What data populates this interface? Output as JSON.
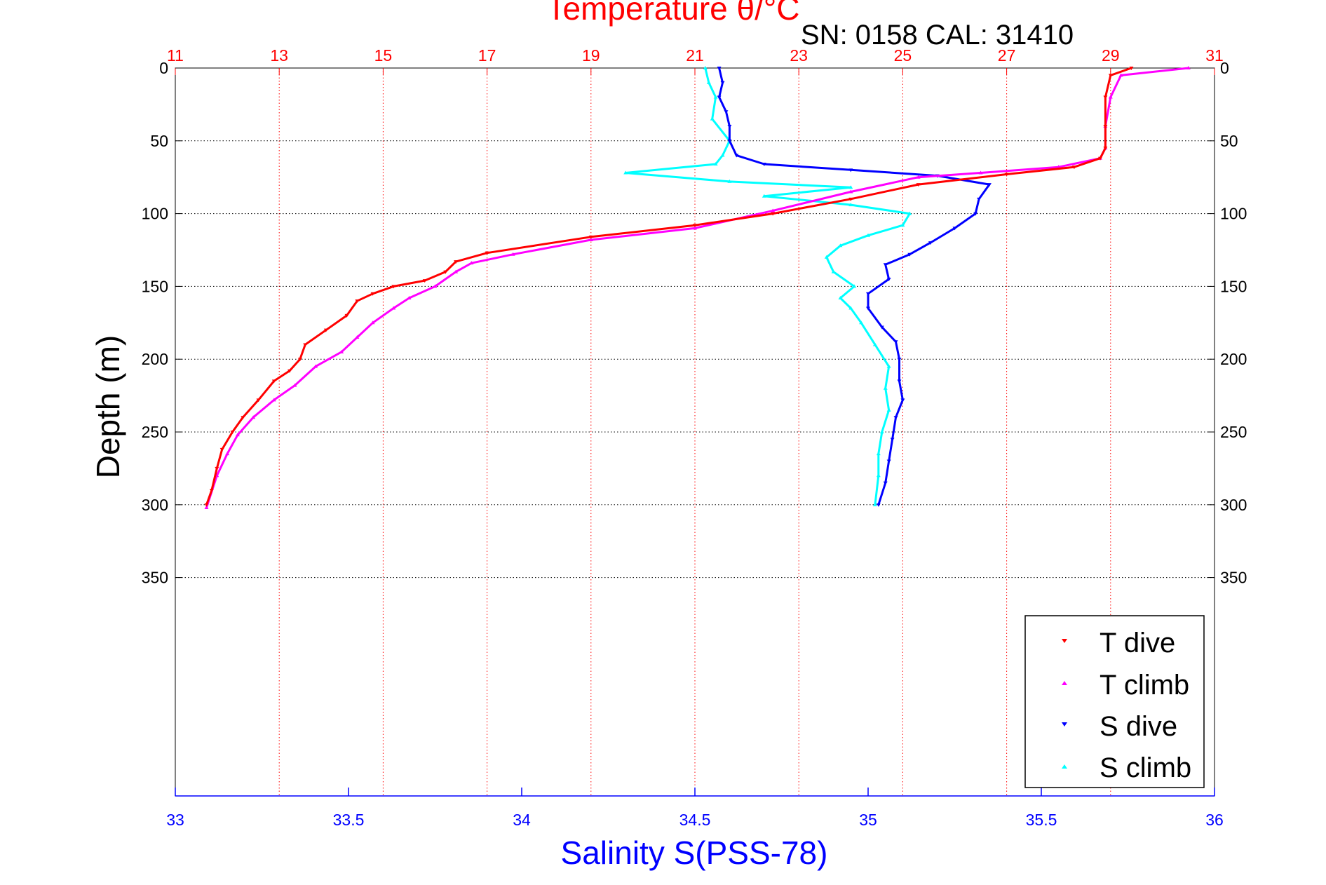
{
  "chart_data": {
    "type": "scatter",
    "title": "Temperature θ/°C",
    "subtitle": "SN: 0158  CAL: 31410",
    "xlabel_top": "Temperature θ/°C",
    "xlabel_bottom": "Salinity S(PSS-78)",
    "ylabel": "Depth (m)",
    "x_top": {
      "lim": [
        11,
        31
      ],
      "ticks": [
        "11",
        "13",
        "15",
        "17",
        "19",
        "21",
        "23",
        "25",
        "27",
        "29",
        "31"
      ],
      "color": "#ff0000"
    },
    "x_bottom": {
      "lim": [
        33,
        36
      ],
      "ticks": [
        "33",
        "33.5",
        "34",
        "34.5",
        "35",
        "35.5",
        "36"
      ],
      "color": "#0000ff"
    },
    "y": {
      "lim": [
        0,
        500
      ],
      "reversed": true,
      "ticks": [
        "0",
        "50",
        "100",
        "150",
        "200",
        "250",
        "300",
        "350"
      ]
    },
    "grid": true,
    "legend_position": "bottom-right",
    "colors": {
      "t_dive": "#ff0000",
      "t_climb": "#ff00ff",
      "s_dive": "#0000ff",
      "s_climb": "#00ffff"
    },
    "series": [
      {
        "name": "T dive",
        "axis": "temperature",
        "marker": "down-triangle",
        "points": [
          [
            29.4,
            0
          ],
          [
            29.0,
            5
          ],
          [
            28.9,
            20
          ],
          [
            28.9,
            40
          ],
          [
            28.9,
            55
          ],
          [
            28.8,
            62
          ],
          [
            28.3,
            68
          ],
          [
            27.0,
            73
          ],
          [
            25.3,
            80
          ],
          [
            24.0,
            90
          ],
          [
            22.5,
            100
          ],
          [
            21.0,
            108
          ],
          [
            19.0,
            116
          ],
          [
            17.0,
            127
          ],
          [
            16.4,
            133
          ],
          [
            16.2,
            140
          ],
          [
            15.8,
            146
          ],
          [
            15.2,
            150
          ],
          [
            14.8,
            155
          ],
          [
            14.5,
            160
          ],
          [
            14.3,
            170
          ],
          [
            13.9,
            180
          ],
          [
            13.5,
            190
          ],
          [
            13.4,
            200
          ],
          [
            13.2,
            208
          ],
          [
            12.9,
            215
          ],
          [
            12.6,
            228
          ],
          [
            12.3,
            240
          ],
          [
            12.1,
            250
          ],
          [
            11.9,
            262
          ],
          [
            11.8,
            275
          ],
          [
            11.7,
            290
          ],
          [
            11.6,
            300
          ]
        ]
      },
      {
        "name": "T climb",
        "axis": "temperature",
        "marker": "up-triangle",
        "points": [
          [
            30.5,
            0
          ],
          [
            29.2,
            5
          ],
          [
            29.0,
            20
          ],
          [
            28.9,
            40
          ],
          [
            28.9,
            55
          ],
          [
            28.8,
            62
          ],
          [
            28.0,
            68
          ],
          [
            26.5,
            72
          ],
          [
            25.3,
            75
          ],
          [
            24.0,
            85
          ],
          [
            22.5,
            98
          ],
          [
            21.0,
            110
          ],
          [
            19.0,
            118
          ],
          [
            17.5,
            128
          ],
          [
            16.7,
            134
          ],
          [
            16.4,
            140
          ],
          [
            16.0,
            150
          ],
          [
            15.5,
            158
          ],
          [
            15.2,
            165
          ],
          [
            14.8,
            175
          ],
          [
            14.5,
            185
          ],
          [
            14.2,
            195
          ],
          [
            13.7,
            205
          ],
          [
            13.3,
            218
          ],
          [
            12.9,
            228
          ],
          [
            12.5,
            240
          ],
          [
            12.2,
            252
          ],
          [
            12.0,
            265
          ],
          [
            11.8,
            280
          ],
          [
            11.6,
            302
          ]
        ]
      },
      {
        "name": "S dive",
        "axis": "salinity",
        "marker": "down-triangle",
        "points": [
          [
            34.57,
            0
          ],
          [
            34.58,
            10
          ],
          [
            34.57,
            20
          ],
          [
            34.59,
            30
          ],
          [
            34.6,
            40
          ],
          [
            34.6,
            50
          ],
          [
            34.62,
            60
          ],
          [
            34.7,
            66
          ],
          [
            34.95,
            70
          ],
          [
            35.2,
            74
          ],
          [
            35.35,
            80
          ],
          [
            35.32,
            90
          ],
          [
            35.31,
            100
          ],
          [
            35.25,
            110
          ],
          [
            35.18,
            120
          ],
          [
            35.12,
            128
          ],
          [
            35.05,
            135
          ],
          [
            35.06,
            145
          ],
          [
            35.0,
            155
          ],
          [
            35.0,
            165
          ],
          [
            35.04,
            178
          ],
          [
            35.08,
            188
          ],
          [
            35.09,
            200
          ],
          [
            35.09,
            215
          ],
          [
            35.1,
            228
          ],
          [
            35.08,
            240
          ],
          [
            35.07,
            255
          ],
          [
            35.06,
            270
          ],
          [
            35.05,
            285
          ],
          [
            35.03,
            300
          ]
        ]
      },
      {
        "name": "S climb",
        "axis": "salinity",
        "marker": "up-triangle",
        "points": [
          [
            34.53,
            0
          ],
          [
            34.54,
            10
          ],
          [
            34.56,
            20
          ],
          [
            34.55,
            35
          ],
          [
            34.6,
            50
          ],
          [
            34.58,
            60
          ],
          [
            34.56,
            66
          ],
          [
            34.3,
            72
          ],
          [
            34.6,
            78
          ],
          [
            34.95,
            82
          ],
          [
            34.7,
            88
          ],
          [
            34.95,
            94
          ],
          [
            35.12,
            100
          ],
          [
            35.1,
            108
          ],
          [
            35.0,
            115
          ],
          [
            34.92,
            122
          ],
          [
            34.88,
            130
          ],
          [
            34.9,
            140
          ],
          [
            34.96,
            150
          ],
          [
            34.92,
            158
          ],
          [
            34.95,
            165
          ],
          [
            34.98,
            175
          ],
          [
            35.02,
            190
          ],
          [
            35.06,
            205
          ],
          [
            35.05,
            220
          ],
          [
            35.06,
            235
          ],
          [
            35.04,
            250
          ],
          [
            35.03,
            265
          ],
          [
            35.03,
            280
          ],
          [
            35.02,
            300
          ]
        ]
      }
    ]
  },
  "legend": {
    "items": [
      "T dive",
      "T climb",
      "S dive",
      "S climb"
    ]
  }
}
